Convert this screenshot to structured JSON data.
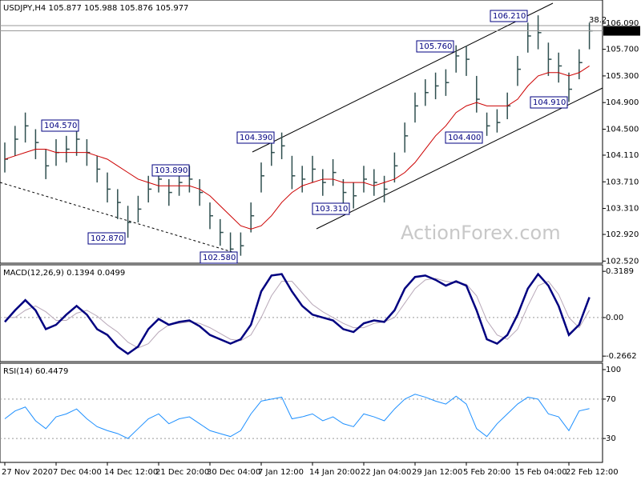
{
  "watermark": "ActionForex.com",
  "chart_data": [
    {
      "type": "hlc",
      "title": "USDJPY,H4  105.877 105.988 105.876 105.977",
      "categories": [
        "27 Nov 2020",
        null,
        null,
        null,
        null,
        "7 Dec 04:00",
        null,
        null,
        null,
        null,
        "14 Dec 12:00",
        null,
        null,
        null,
        null,
        "21 Dec 20:00",
        null,
        null,
        null,
        null,
        "30 Dec 04:00",
        null,
        null,
        null,
        null,
        "7 Jan 12:00",
        null,
        null,
        null,
        null,
        "14 Jan 20:00",
        null,
        null,
        null,
        null,
        "22 Jan 04:00",
        null,
        null,
        null,
        null,
        "29 Jan 12:00",
        null,
        null,
        null,
        null,
        "5 Feb 20:00",
        null,
        null,
        null,
        null,
        "15 Feb 04:00",
        null,
        null,
        null,
        null,
        "22 Feb 12:00",
        null,
        null
      ],
      "color": "#2f4f4f",
      "high": [
        104.3,
        104.55,
        104.75,
        104.5,
        104.2,
        104.35,
        104.4,
        104.55,
        104.35,
        104.1,
        103.85,
        103.6,
        103.35,
        103.5,
        103.8,
        103.95,
        103.75,
        103.9,
        103.95,
        103.75,
        103.4,
        103.15,
        102.95,
        102.95,
        103.4,
        104.0,
        104.35,
        104.45,
        104.1,
        103.95,
        104.1,
        103.9,
        104.05,
        103.75,
        103.7,
        103.95,
        103.9,
        103.8,
        104.15,
        104.6,
        105.05,
        105.25,
        105.35,
        105.4,
        105.76,
        105.75,
        105.3,
        104.75,
        104.8,
        105.05,
        105.6,
        106.1,
        106.21,
        105.8,
        105.65,
        105.35,
        105.7,
        106.1
      ],
      "low": [
        103.85,
        104.1,
        104.3,
        104.05,
        103.75,
        103.95,
        104.0,
        104.1,
        103.95,
        103.7,
        103.4,
        103.15,
        102.87,
        103.1,
        103.4,
        103.55,
        103.35,
        103.5,
        103.55,
        103.35,
        103.0,
        102.75,
        102.58,
        102.6,
        102.95,
        103.55,
        103.95,
        104.05,
        103.6,
        103.55,
        103.7,
        103.5,
        103.65,
        103.35,
        103.31,
        103.55,
        103.5,
        103.4,
        103.7,
        104.15,
        104.6,
        104.85,
        104.95,
        105.0,
        105.35,
        105.3,
        104.75,
        104.4,
        104.45,
        104.65,
        105.15,
        105.65,
        105.7,
        105.3,
        105.2,
        104.91,
        105.25,
        105.7
      ],
      "values": [
        104.05,
        104.35,
        104.55,
        104.3,
        103.95,
        104.15,
        104.2,
        104.35,
        104.15,
        103.9,
        103.6,
        103.4,
        103.1,
        103.3,
        103.6,
        103.75,
        103.55,
        103.7,
        103.75,
        103.55,
        103.2,
        102.95,
        102.7,
        102.75,
        103.2,
        103.8,
        104.15,
        104.25,
        103.8,
        103.75,
        103.9,
        103.7,
        103.85,
        103.55,
        103.5,
        103.75,
        103.7,
        103.6,
        103.95,
        104.4,
        104.85,
        105.05,
        105.15,
        105.2,
        105.6,
        105.55,
        104.95,
        104.55,
        104.6,
        104.85,
        105.4,
        105.9,
        105.95,
        105.55,
        105.45,
        105.1,
        105.5,
        105.977
      ],
      "ma": {
        "color": "#cc0000",
        "values": [
          104.05,
          104.1,
          104.15,
          104.2,
          104.2,
          104.15,
          104.15,
          104.15,
          104.15,
          104.1,
          104.05,
          103.95,
          103.85,
          103.75,
          103.7,
          103.65,
          103.65,
          103.65,
          103.65,
          103.6,
          103.5,
          103.35,
          103.2,
          103.05,
          103.0,
          103.05,
          103.2,
          103.4,
          103.55,
          103.65,
          103.7,
          103.75,
          103.75,
          103.7,
          103.7,
          103.7,
          103.65,
          103.7,
          103.75,
          103.85,
          104.0,
          104.2,
          104.4,
          104.55,
          104.75,
          104.85,
          104.9,
          104.85,
          104.85,
          104.85,
          104.95,
          105.15,
          105.3,
          105.35,
          105.35,
          105.3,
          105.35,
          105.45
        ]
      },
      "last_price": 105.977,
      "annotations": [
        "104.570",
        "102.870",
        "103.890",
        "102.580",
        "104.390",
        "103.310",
        "105.760",
        "104.400",
        "106.210",
        "104.910",
        "38.2"
      ],
      "ylim": [
        102.5,
        106.44
      ],
      "yticks": [
        {
          "value": 102.52,
          "label": "102.520"
        },
        {
          "value": 102.92,
          "label": "102.920"
        },
        {
          "value": 103.31,
          "label": "103.310"
        },
        {
          "value": 103.71,
          "label": "103.710"
        },
        {
          "value": 104.11,
          "label": "104.110"
        },
        {
          "value": 104.5,
          "label": "104.500"
        },
        {
          "value": 104.9,
          "label": "104.900"
        },
        {
          "value": 105.3,
          "label": "105.300"
        },
        {
          "value": 105.7,
          "label": "105.700"
        },
        {
          "value": 106.09,
          "label": "106.090"
        }
      ]
    },
    {
      "type": "line",
      "title": "MACD(12,26,9) 0.1394 0.0499",
      "series": [
        {
          "color": "#000080",
          "values": [
            -0.03,
            0.05,
            0.12,
            0.05,
            -0.08,
            -0.05,
            0.02,
            0.08,
            0.02,
            -0.08,
            -0.12,
            -0.2,
            -0.25,
            -0.2,
            -0.08,
            -0.01,
            -0.05,
            -0.03,
            -0.02,
            -0.06,
            -0.12,
            -0.15,
            -0.18,
            -0.15,
            -0.05,
            0.18,
            0.29,
            0.3,
            0.18,
            0.08,
            0.02,
            0.0,
            -0.02,
            -0.08,
            -0.1,
            -0.04,
            -0.02,
            -0.03,
            0.05,
            0.2,
            0.28,
            0.29,
            0.26,
            0.22,
            0.25,
            0.22,
            0.05,
            -0.15,
            -0.18,
            -0.12,
            0.02,
            0.2,
            0.3,
            0.22,
            0.08,
            -0.12,
            -0.05,
            0.14
          ]
        },
        {
          "color": "#b8a8b8",
          "values": [
            0.0,
            0.0,
            0.05,
            0.08,
            0.04,
            -0.02,
            -0.02,
            0.03,
            0.05,
            0.01,
            -0.05,
            -0.1,
            -0.17,
            -0.21,
            -0.18,
            -0.1,
            -0.05,
            -0.04,
            -0.03,
            -0.04,
            -0.07,
            -0.11,
            -0.15,
            -0.16,
            -0.12,
            0.0,
            0.15,
            0.25,
            0.25,
            0.17,
            0.09,
            0.04,
            0.0,
            -0.04,
            -0.07,
            -0.07,
            -0.04,
            -0.03,
            0.0,
            0.1,
            0.2,
            0.26,
            0.27,
            0.25,
            0.24,
            0.23,
            0.15,
            -0.02,
            -0.12,
            -0.15,
            -0.08,
            0.08,
            0.22,
            0.25,
            0.16,
            0.0,
            -0.07,
            0.05
          ]
        }
      ],
      "ylim": [
        -0.293,
        0.364
      ],
      "yticks": [
        0.3189,
        {
          "value": 0,
          "label": "0.00"
        },
        -0.2662
      ],
      "levels": [
        0
      ]
    },
    {
      "type": "line",
      "title": "RSI(14) 60.4479",
      "series": [
        {
          "color": "#1e90ff",
          "values": [
            50,
            58,
            62,
            48,
            40,
            52,
            55,
            60,
            50,
            42,
            38,
            35,
            30,
            40,
            50,
            55,
            45,
            50,
            52,
            45,
            38,
            35,
            32,
            38,
            55,
            68,
            70,
            72,
            50,
            52,
            55,
            48,
            52,
            45,
            42,
            55,
            52,
            48,
            60,
            70,
            75,
            72,
            68,
            65,
            73,
            65,
            40,
            32,
            45,
            55,
            65,
            72,
            70,
            55,
            52,
            38,
            58,
            60.4
          ]
        }
      ],
      "ylim": [
        5.7,
        105.7
      ],
      "yticks": [
        100,
        70,
        30
      ],
      "levels": [
        70,
        30
      ]
    }
  ]
}
